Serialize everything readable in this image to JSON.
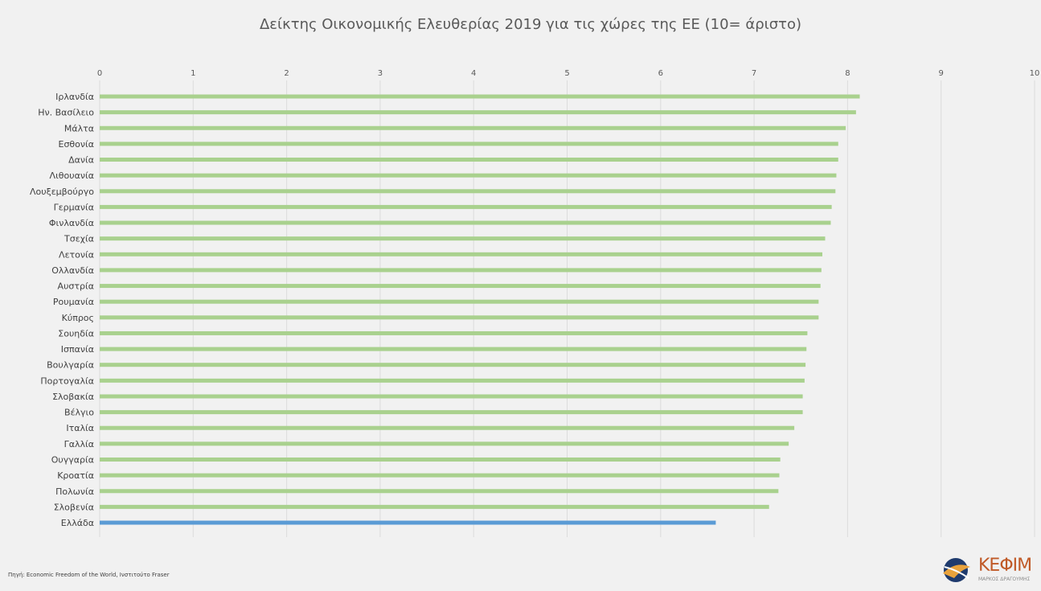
{
  "chart_data": {
    "type": "bar",
    "orientation": "horizontal",
    "title": "Δείκτης Οικονομικής Ελευθερίας 2019 για τις χώρες της ΕΕ (10= άριστο)",
    "xlim": [
      0,
      10
    ],
    "ticks": [
      "0",
      "1",
      "2",
      "3",
      "4",
      "5",
      "6",
      "7",
      "8",
      "9",
      "10"
    ],
    "tick_position": "top",
    "grid": "vertical",
    "legend": "none",
    "colors": {
      "default": "#a9d18e",
      "highlight": "#5b9bd5"
    },
    "highlight_category": "Ελλάδα",
    "categories": [
      "Ιρλανδία",
      "Ην. Βασίλειο",
      "Μάλτα",
      "Εσθονία",
      "Δανία",
      "Λιθουανία",
      "Λουξεμβούργο",
      "Γερμανία",
      "Φινλανδία",
      "Τσεχία",
      "Λετονία",
      "Ολλανδία",
      "Αυστρία",
      "Ρουμανία",
      "Κύπρος",
      "Σουηδία",
      "Ισπανία",
      "Βουλγαρία",
      "Πορτογαλία",
      "Σλοβακία",
      "Βέλγιο",
      "Ιταλία",
      "Γαλλία",
      "Ουγγαρία",
      "Κροατία",
      "Πολωνία",
      "Σλοβενία",
      "Ελλάδα"
    ],
    "values": [
      8.13,
      8.09,
      7.98,
      7.9,
      7.9,
      7.88,
      7.87,
      7.83,
      7.82,
      7.76,
      7.73,
      7.72,
      7.71,
      7.69,
      7.69,
      7.57,
      7.56,
      7.55,
      7.54,
      7.52,
      7.52,
      7.43,
      7.37,
      7.28,
      7.27,
      7.26,
      7.16,
      6.59
    ]
  },
  "source": "Πηγή: Economic Freedom of the World, Ινστιτούτο Fraser",
  "logo": {
    "text": "ΚΕΦΙΜ",
    "subtext": "ΜΑΡΚΟΣ ΔΡΑΓΟΥΜΗΣ"
  }
}
